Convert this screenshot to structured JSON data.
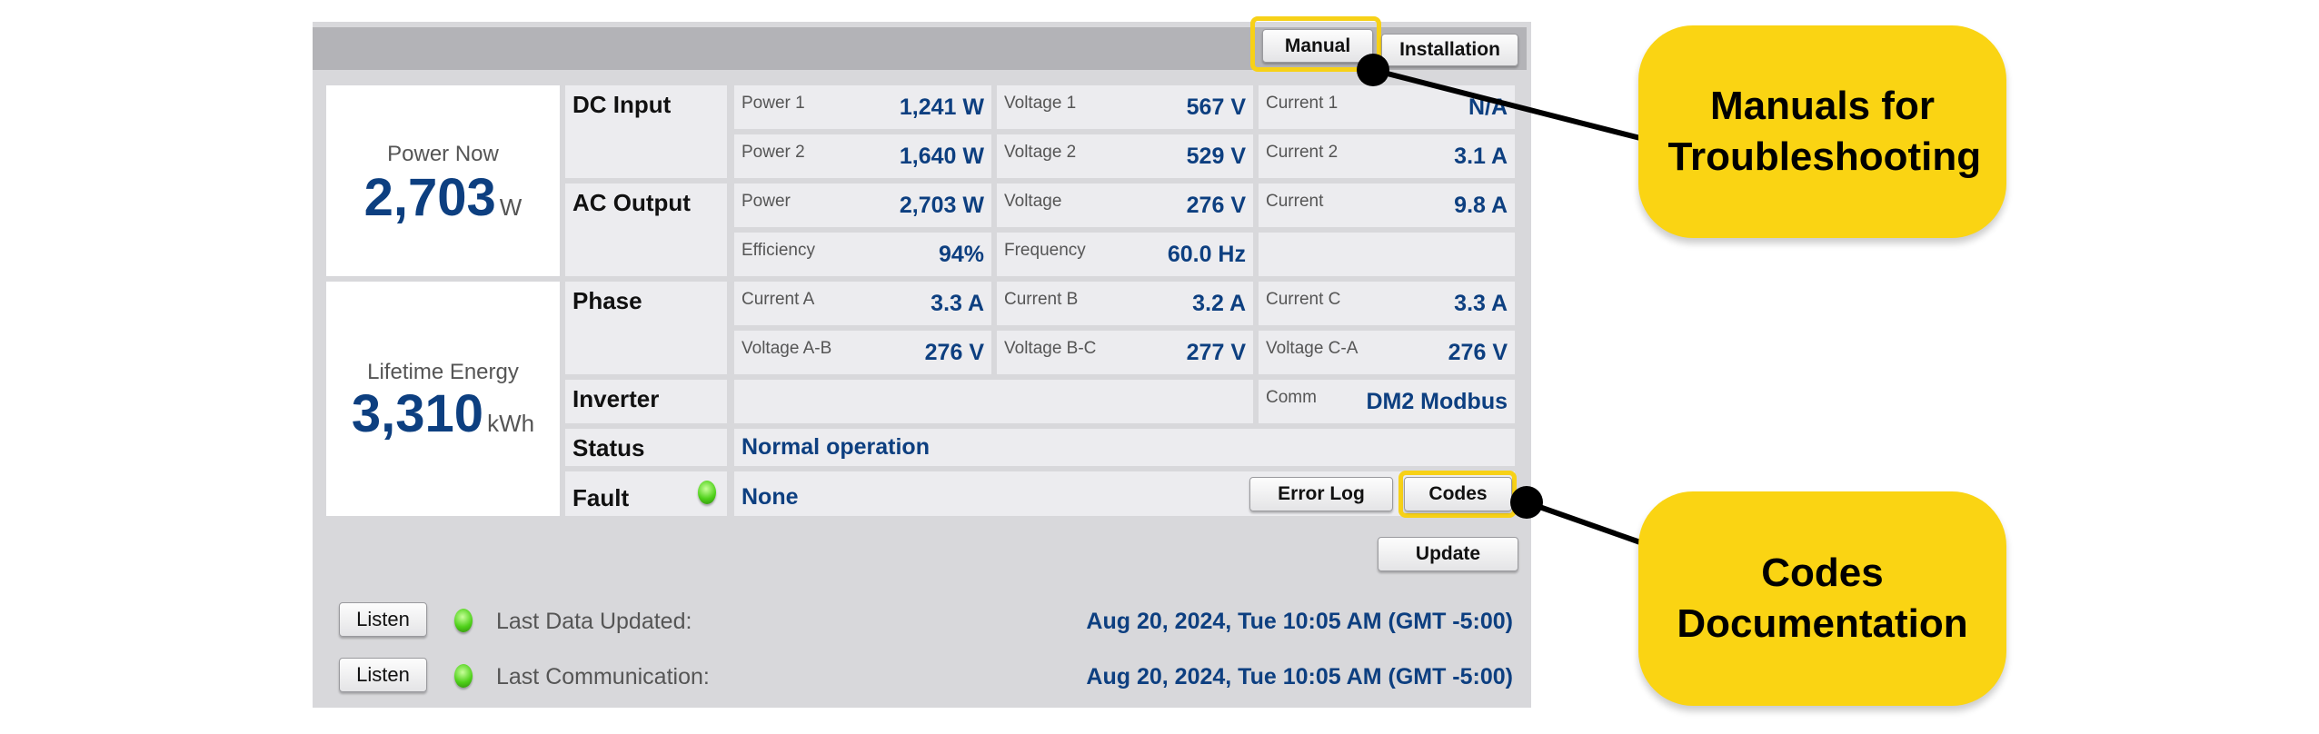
{
  "header": {
    "manual_label": "Manual",
    "installation_label": "Installation"
  },
  "power_now": {
    "label": "Power Now",
    "value": "2,703",
    "unit": "W"
  },
  "lifetime": {
    "label": "Lifetime Energy",
    "value": "3,310",
    "unit": "kWh"
  },
  "dc_input": {
    "label": "DC Input",
    "rows": [
      [
        {
          "label": "Power 1",
          "value": "1,241 W"
        },
        {
          "label": "Voltage 1",
          "value": "567 V"
        },
        {
          "label": "Current 1",
          "value": "N/A"
        }
      ],
      [
        {
          "label": "Power 2",
          "value": "1,640 W"
        },
        {
          "label": "Voltage 2",
          "value": "529 V"
        },
        {
          "label": "Current 2",
          "value": "3.1 A"
        }
      ]
    ]
  },
  "ac_output": {
    "label": "AC Output",
    "rows": [
      [
        {
          "label": "Power",
          "value": "2,703 W"
        },
        {
          "label": "Voltage",
          "value": "276 V"
        },
        {
          "label": "Current",
          "value": "9.8 A"
        }
      ],
      [
        {
          "label": "Efficiency",
          "value": "94%"
        },
        {
          "label": "Frequency",
          "value": "60.0 Hz"
        }
      ]
    ]
  },
  "phase": {
    "label": "Phase",
    "rows": [
      [
        {
          "label": "Current A",
          "value": "3.3 A"
        },
        {
          "label": "Current B",
          "value": "3.2 A"
        },
        {
          "label": "Current C",
          "value": "3.3 A"
        }
      ],
      [
        {
          "label": "Voltage A-B",
          "value": "276 V"
        },
        {
          "label": "Voltage B-C",
          "value": "277 V"
        },
        {
          "label": "Voltage C-A",
          "value": "276 V"
        }
      ]
    ]
  },
  "inverter": {
    "label": "Inverter",
    "comm_label": "Comm",
    "comm_value": "DM2 Modbus"
  },
  "status": {
    "label": "Status",
    "value": "Normal operation"
  },
  "fault": {
    "label": "Fault",
    "value": "None",
    "error_log_label": "Error Log",
    "codes_label": "Codes",
    "led_color": "#4fd11a"
  },
  "update_label": "Update",
  "footer": [
    {
      "listen_label": "Listen",
      "label": "Last Data Updated:",
      "value": "Aug 20, 2024, Tue 10:05 AM (GMT -5:00)"
    },
    {
      "listen_label": "Listen",
      "label": "Last Communication:",
      "value": "Aug 20, 2024, Tue 10:05 AM (GMT -5:00)"
    }
  ],
  "callouts": {
    "manuals": "Manuals for Troubleshooting",
    "codes": "Codes Documentation",
    "color": "#fad413"
  }
}
